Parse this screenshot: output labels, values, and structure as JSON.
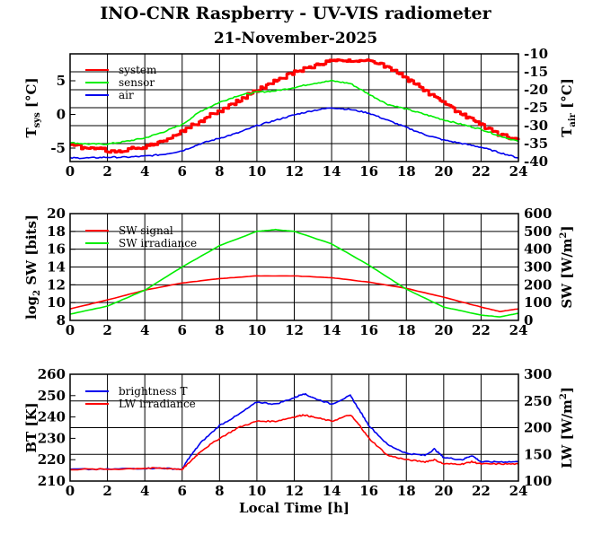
{
  "title": "INO-CNR Raspberry - UV-VIS radiometer",
  "date": "21-November-2025",
  "colors": {
    "red": "#ff0000",
    "green": "#00ee00",
    "blue": "#0000ee"
  },
  "chart_data": [
    {
      "type": "line",
      "id": "temperature",
      "xlim": [
        0,
        24
      ],
      "xticks": [
        "0",
        "2",
        "4",
        "6",
        "8",
        "10",
        "12",
        "14",
        "16",
        "18",
        "20",
        "22",
        "24"
      ],
      "ylim": [
        -7,
        9
      ],
      "yticks": [
        "-5",
        "0",
        "5"
      ],
      "ylabel": {
        "main": "T",
        "sub": "sys",
        "unit": " [°C]"
      },
      "y2lim": [
        -40,
        -10
      ],
      "y2ticks": [
        "-40",
        "-35",
        "-30",
        "-25",
        "-20",
        "-15",
        "-10"
      ],
      "y2label": {
        "main": "T",
        "sub": "air",
        "unit": " [°C]"
      },
      "series": [
        {
          "name": "system",
          "color": "red",
          "axis": "left",
          "step": true,
          "x": [
            0,
            1,
            2,
            3,
            4,
            5,
            6,
            7,
            8,
            9,
            10,
            11,
            12,
            13,
            14,
            15,
            16,
            17,
            18,
            19,
            20,
            21,
            22,
            23,
            24
          ],
          "y": [
            -4.5,
            -5.0,
            -5.3,
            -5.3,
            -4.8,
            -4.0,
            -2.5,
            -1.0,
            0.5,
            2.0,
            3.6,
            5.0,
            6.3,
            7.2,
            8.0,
            8.2,
            8.0,
            7.0,
            5.4,
            3.5,
            1.8,
            0.0,
            -1.5,
            -3.0,
            -3.8
          ]
        },
        {
          "name": "sensor",
          "color": "green",
          "axis": "left",
          "x": [
            0,
            1,
            2,
            3,
            4,
            5,
            6,
            7,
            8,
            9,
            10,
            11,
            12,
            13,
            14,
            15,
            16,
            17,
            18,
            19,
            20,
            21,
            22,
            23,
            24
          ],
          "y": [
            -4.2,
            -4.4,
            -4.4,
            -4.0,
            -3.5,
            -2.6,
            -1.5,
            0.5,
            1.8,
            2.8,
            3.3,
            3.5,
            4.0,
            4.6,
            5.0,
            4.6,
            3.0,
            1.5,
            0.8,
            0.0,
            -0.8,
            -1.5,
            -2.2,
            -3.2,
            -4.0
          ]
        },
        {
          "name": "air",
          "color": "blue",
          "axis": "right",
          "x": [
            0,
            1,
            2,
            3,
            4,
            5,
            6,
            7,
            8,
            9,
            10,
            11,
            12,
            13,
            14,
            15,
            16,
            17,
            18,
            19,
            20,
            21,
            22,
            23,
            24
          ],
          "y": [
            -39.0,
            -39.0,
            -38.8,
            -38.8,
            -38.5,
            -38.0,
            -37.0,
            -35.0,
            -33.5,
            -32.0,
            -30.0,
            -28.5,
            -27.0,
            -25.8,
            -25.0,
            -25.5,
            -26.5,
            -28.5,
            -30.5,
            -32.5,
            -34.0,
            -35.0,
            -36.0,
            -37.5,
            -39.0
          ]
        }
      ]
    },
    {
      "type": "line",
      "id": "shortwave",
      "xlim": [
        0,
        24
      ],
      "xticks": [
        "0",
        "2",
        "4",
        "6",
        "8",
        "10",
        "12",
        "14",
        "16",
        "18",
        "20",
        "22",
        "24"
      ],
      "ylim": [
        8,
        20
      ],
      "yticks": [
        "8",
        "10",
        "12",
        "14",
        "16",
        "18",
        "20"
      ],
      "ylabel": {
        "main": "log",
        "sub": "2",
        "unit": " SW [bits]"
      },
      "y2lim": [
        0,
        600
      ],
      "y2ticks": [
        "0",
        "100",
        "200",
        "300",
        "400",
        "500",
        "600"
      ],
      "y2label": {
        "main": "SW [W/m",
        "sup": "2",
        "unit": "]"
      },
      "series": [
        {
          "name": "SW signal",
          "color": "red",
          "axis": "left",
          "x": [
            0,
            2,
            4,
            6,
            8,
            10,
            12,
            14,
            16,
            18,
            20,
            22,
            23,
            24
          ],
          "y": [
            9.3,
            10.3,
            11.4,
            12.2,
            12.7,
            13.0,
            13.0,
            12.8,
            12.3,
            11.6,
            10.6,
            9.5,
            9.0,
            9.3
          ]
        },
        {
          "name": "SW irradiance",
          "color": "green",
          "axis": "right",
          "x": [
            0,
            2,
            4,
            6,
            8,
            10,
            11,
            12,
            14,
            16,
            18,
            20,
            22,
            23,
            24
          ],
          "y": [
            35,
            80,
            170,
            300,
            420,
            500,
            510,
            500,
            430,
            310,
            175,
            75,
            30,
            20,
            40
          ]
        }
      ]
    },
    {
      "type": "line",
      "id": "longwave",
      "xlim": [
        0,
        24
      ],
      "xticks": [
        "0",
        "2",
        "4",
        "6",
        "8",
        "10",
        "12",
        "14",
        "16",
        "18",
        "20",
        "22",
        "24"
      ],
      "xlabel": "Local Time [h]",
      "ylim": [
        210,
        260
      ],
      "yticks": [
        "210",
        "220",
        "230",
        "240",
        "250",
        "260"
      ],
      "ylabel": {
        "main": "BT [K]",
        "sub": "",
        "unit": ""
      },
      "y2lim": [
        100,
        300
      ],
      "y2ticks": [
        "100",
        "150",
        "200",
        "250",
        "300"
      ],
      "y2label": {
        "main": "LW [W/m",
        "sup": "2",
        "unit": "]"
      },
      "series": [
        {
          "name": "brightness T",
          "color": "blue",
          "axis": "left",
          "x": [
            0,
            2,
            4,
            5,
            6,
            6.3,
            7,
            8,
            9,
            10,
            11,
            12,
            12.5,
            13,
            14,
            15,
            15.5,
            16,
            17,
            18,
            19,
            19.5,
            20,
            21,
            21.5,
            22,
            23,
            24
          ],
          "y": [
            215.5,
            215.5,
            216,
            216,
            215.5,
            220,
            228,
            236,
            241,
            247,
            246,
            249,
            251,
            249,
            246,
            250,
            243,
            236,
            227,
            223,
            222,
            225,
            221,
            220,
            222,
            219,
            219,
            219
          ]
        },
        {
          "name": "LW irradiance",
          "color": "red",
          "axis": "left",
          "x": [
            0,
            2,
            4,
            5,
            6,
            6.3,
            7,
            8,
            9,
            10,
            11,
            12,
            12.5,
            13,
            14,
            15,
            15.5,
            16,
            17,
            18,
            19,
            19.5,
            20,
            21,
            21.5,
            22,
            23,
            24
          ],
          "y": [
            215.5,
            215.5,
            216,
            216,
            215.5,
            218,
            224,
            230,
            235,
            238,
            238,
            240,
            241,
            240,
            238,
            241,
            236,
            230,
            222,
            220,
            219,
            220,
            218,
            218,
            219,
            218,
            218,
            218
          ]
        }
      ]
    }
  ]
}
